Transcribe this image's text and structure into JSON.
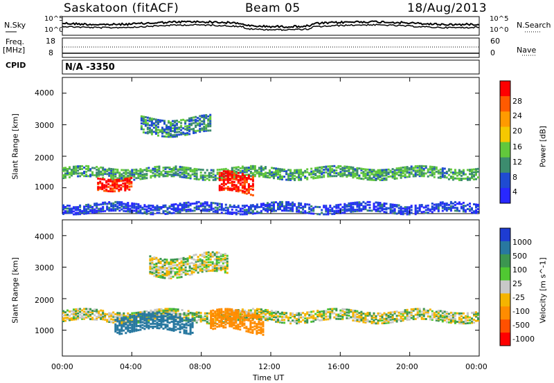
{
  "header": {
    "station_title": "Saskatoon (fitACF)",
    "beam_label": "Beam 05",
    "date_label": "18/Aug/2013"
  },
  "noise_panel": {
    "left_label_top": "N.Sky",
    "right_label_top": "N.Search",
    "left_tick_high": "10^5",
    "left_tick_low": "10^0",
    "right_tick_high": "10^5",
    "right_tick_low": "10^0"
  },
  "freq_panel": {
    "left_label_line1": "Freq.",
    "left_label_line2": "[MHz]",
    "right_label": "Nave",
    "left_ticks": [
      "18",
      "8"
    ],
    "right_ticks": [
      "60",
      "0"
    ]
  },
  "cpid_panel": {
    "label": "CPID",
    "value": "N/A -3350"
  },
  "power_panel": {
    "ylabel": "Slant Range [km]",
    "yticks": [
      "4000",
      "3000",
      "2000",
      "1000"
    ],
    "colorbar_label": "Power [dB]",
    "colorbar_ticks": [
      "28",
      "24",
      "20",
      "16",
      "12",
      "8",
      "4"
    ],
    "colors": [
      "#ff0000",
      "#ff5a00",
      "#ff9a00",
      "#f5c800",
      "#62c83c",
      "#3c8c6e",
      "#1f4bd2",
      "#2828ff"
    ]
  },
  "velocity_panel": {
    "ylabel": "Slant Range [km]",
    "yticks": [
      "4000",
      "3000",
      "2000",
      "1000"
    ],
    "colorbar_label": "Velocity [m s^-1]",
    "colorbar_ticks": [
      "1000",
      "500",
      "100",
      "25",
      "-25",
      "-100",
      "-500",
      "-1000"
    ],
    "colors": [
      "#1e3cd2",
      "#2878a0",
      "#3c9650",
      "#50c832",
      "#c8c8c8",
      "#f5b400",
      "#ff8c00",
      "#ff5000",
      "#ff0000"
    ]
  },
  "xaxis": {
    "ticks": [
      "00:00",
      "04:00",
      "08:00",
      "12:00",
      "16:00",
      "20:00",
      "00:00"
    ],
    "label": "Time UT"
  },
  "chart_data": [
    {
      "type": "heatmap",
      "title": "Saskatoon (fitACF)",
      "ylabel": "Slant Range [km]",
      "xlabel": "Time UT",
      "x_range": [
        "00:00",
        "24:00"
      ],
      "ylim": [
        180,
        4500
      ],
      "colorbar": {
        "label": "Power [dB]",
        "range": [
          0,
          30
        ],
        "ticks": [
          4,
          8,
          12,
          16,
          20,
          24,
          28
        ]
      },
      "echo_regions": [
        {
          "x_start": 0.0,
          "x_end": 24.0,
          "y_center": 1500,
          "y_halfwidth": 160,
          "value": 12
        },
        {
          "x_start": 2.0,
          "x_end": 4.0,
          "y_center": 1200,
          "y_halfwidth": 200,
          "value": 28
        },
        {
          "x_start": 9.0,
          "x_end": 11.0,
          "y_center": 1150,
          "y_halfwidth": 300,
          "value": 28
        },
        {
          "x_start": 4.5,
          "x_end": 8.5,
          "y_center": 3000,
          "y_halfwidth": 250,
          "value": 10
        },
        {
          "x_start": 0.0,
          "x_end": 24.0,
          "y_center": 400,
          "y_halfwidth": 150,
          "value": 6
        }
      ]
    },
    {
      "type": "heatmap",
      "ylabel": "Slant Range [km]",
      "xlabel": "Time UT",
      "x_range": [
        "00:00",
        "24:00"
      ],
      "ylim": [
        180,
        4500
      ],
      "colorbar": {
        "label": "Velocity [m s^-1]",
        "ticks": [
          -1000,
          -500,
          -100,
          -25,
          25,
          100,
          500,
          1000
        ]
      },
      "echo_regions": [
        {
          "x_start": 0.0,
          "x_end": 24.0,
          "y_center": 1500,
          "y_halfwidth": 180,
          "value": 0
        },
        {
          "x_start": 3.0,
          "x_end": 7.5,
          "y_center": 1250,
          "y_halfwidth": 250,
          "value": 300
        },
        {
          "x_start": 8.5,
          "x_end": 11.5,
          "y_center": 1300,
          "y_halfwidth": 300,
          "value": -400
        },
        {
          "x_start": 5.0,
          "x_end": 9.5,
          "y_center": 3100,
          "y_halfwidth": 300,
          "value": 0
        }
      ]
    }
  ]
}
